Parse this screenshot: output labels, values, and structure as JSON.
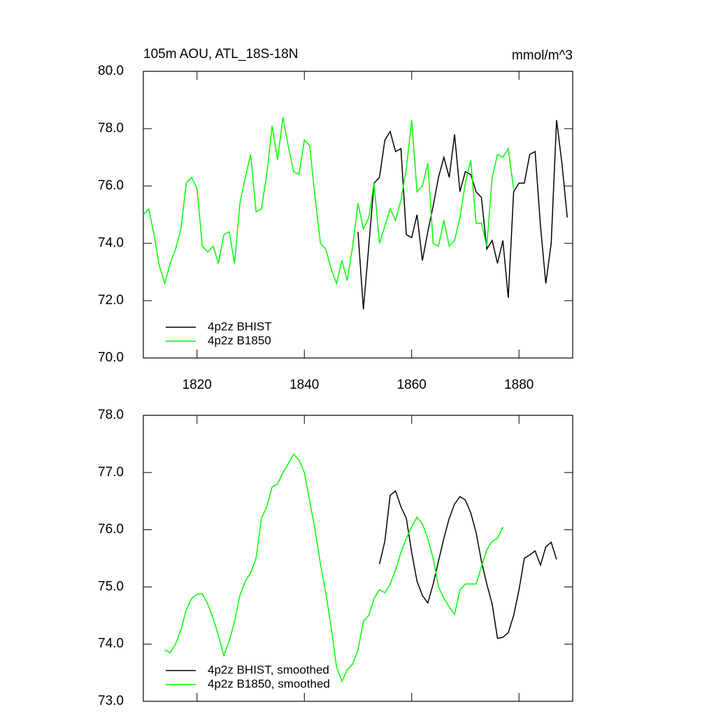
{
  "chart_data": [
    {
      "type": "line",
      "title": "105m AOU, ATL_18S-18N",
      "units_label": "mmol/m^3",
      "xlim": [
        1810,
        1890
      ],
      "xticks": [
        1820,
        1840,
        1860,
        1880
      ],
      "show_xtick_labels": true,
      "ylim": [
        70,
        80
      ],
      "yticks": [
        {
          "value": 70,
          "label": "70.0"
        },
        {
          "value": 72,
          "label": "72.0"
        },
        {
          "value": 74,
          "label": "74.0"
        },
        {
          "value": 76,
          "label": "76.0"
        },
        {
          "value": 78,
          "label": "78.0"
        },
        {
          "value": 80,
          "label": "80.0"
        }
      ],
      "legend": "lower left",
      "series": [
        {
          "name": "4p2z BHIST",
          "color": "#000000",
          "x": [
            1850,
            1851,
            1852,
            1853,
            1854,
            1855,
            1856,
            1857,
            1858,
            1859,
            1860,
            1861,
            1862,
            1863,
            1864,
            1865,
            1866,
            1867,
            1868,
            1869,
            1870,
            1871,
            1872,
            1873,
            1874,
            1875,
            1876,
            1877,
            1878,
            1879,
            1880,
            1881,
            1882,
            1883,
            1884,
            1885,
            1886,
            1887,
            1888,
            1889
          ],
          "values": [
            74.4,
            71.7,
            73.9,
            76.1,
            76.3,
            77.6,
            77.9,
            77.2,
            77.3,
            74.3,
            74.2,
            75.0,
            73.4,
            74.4,
            75.3,
            76.3,
            77.0,
            76.3,
            77.8,
            75.8,
            76.5,
            76.4,
            75.8,
            75.6,
            73.8,
            74.1,
            73.3,
            74.1,
            72.1,
            75.8,
            76.1,
            76.1,
            77.1,
            77.2,
            74.6,
            72.6,
            74.0,
            78.3,
            76.8,
            74.9
          ]
        },
        {
          "name": "4p2z B1850",
          "color": "#00ff00",
          "x": [
            1810,
            1811,
            1812,
            1813,
            1814,
            1815,
            1816,
            1817,
            1818,
            1819,
            1820,
            1821,
            1822,
            1823,
            1824,
            1825,
            1826,
            1827,
            1828,
            1829,
            1830,
            1831,
            1832,
            1833,
            1834,
            1835,
            1836,
            1837,
            1838,
            1839,
            1840,
            1841,
            1842,
            1843,
            1844,
            1845,
            1846,
            1847,
            1848,
            1849,
            1850,
            1851,
            1852,
            1853,
            1854,
            1855,
            1856,
            1857,
            1858,
            1859,
            1860,
            1861,
            1862,
            1863,
            1864,
            1865,
            1866,
            1867,
            1868,
            1869,
            1870,
            1871,
            1872,
            1873,
            1874,
            1875,
            1876,
            1877,
            1878,
            1879
          ],
          "values": [
            75.0,
            75.2,
            74.3,
            73.2,
            72.6,
            73.3,
            73.8,
            74.5,
            76.1,
            76.3,
            75.9,
            73.9,
            73.7,
            73.9,
            73.3,
            74.3,
            74.4,
            73.3,
            75.4,
            76.3,
            77.1,
            75.1,
            75.2,
            76.4,
            78.1,
            76.9,
            78.4,
            77.4,
            76.5,
            76.4,
            77.6,
            77.4,
            75.6,
            74.0,
            73.8,
            73.1,
            72.6,
            73.4,
            72.7,
            73.9,
            75.4,
            74.5,
            74.9,
            76.1,
            74.0,
            74.6,
            75.2,
            74.8,
            75.5,
            76.6,
            78.3,
            75.8,
            76.0,
            76.8,
            74.0,
            73.9,
            74.8,
            73.9,
            74.1,
            74.9,
            76.1,
            76.9,
            74.7,
            74.7,
            73.9,
            76.3,
            77.1,
            77.0,
            77.3,
            75.9
          ]
        }
      ]
    },
    {
      "type": "line",
      "xlim": [
        1810,
        1890
      ],
      "xticks": [
        1820,
        1840,
        1860,
        1880
      ],
      "show_xtick_labels": false,
      "ylim": [
        73,
        78
      ],
      "yticks": [
        {
          "value": 73,
          "label": "73.0"
        },
        {
          "value": 74,
          "label": "74.0"
        },
        {
          "value": 75,
          "label": "75.0"
        },
        {
          "value": 76,
          "label": "76.0"
        },
        {
          "value": 77,
          "label": "77.0"
        },
        {
          "value": 78,
          "label": "78.0"
        }
      ],
      "legend": "lower left",
      "series": [
        {
          "name": "4p2z BHIST, smoothed",
          "color": "#000000",
          "x": [
            1854,
            1855,
            1856,
            1857,
            1858,
            1859,
            1860,
            1861,
            1862,
            1863,
            1864,
            1865,
            1866,
            1867,
            1868,
            1869,
            1870,
            1871,
            1872,
            1873,
            1874,
            1875,
            1876,
            1877,
            1878,
            1879,
            1880,
            1881,
            1882,
            1883,
            1884,
            1885,
            1886,
            1887
          ],
          "values": [
            75.4,
            75.8,
            76.6,
            76.68,
            76.4,
            76.2,
            75.6,
            75.1,
            74.85,
            74.72,
            75.05,
            75.45,
            75.85,
            76.2,
            76.45,
            76.58,
            76.52,
            76.3,
            75.95,
            75.45,
            75.05,
            74.7,
            74.1,
            74.12,
            74.2,
            74.5,
            74.95,
            75.5,
            75.56,
            75.63,
            75.38,
            75.7,
            75.78,
            75.48
          ]
        },
        {
          "name": "4p2z B1850, smoothed",
          "color": "#00ff00",
          "x": [
            1814,
            1815,
            1816,
            1817,
            1818,
            1819,
            1820,
            1821,
            1822,
            1823,
            1824,
            1825,
            1826,
            1827,
            1828,
            1829,
            1830,
            1831,
            1832,
            1833,
            1834,
            1835,
            1836,
            1837,
            1838,
            1839,
            1840,
            1841,
            1842,
            1843,
            1844,
            1845,
            1846,
            1847,
            1848,
            1849,
            1850,
            1851,
            1852,
            1853,
            1854,
            1855,
            1856,
            1857,
            1858,
            1859,
            1860,
            1861,
            1862,
            1863,
            1864,
            1865,
            1866,
            1867,
            1868,
            1869,
            1870,
            1871,
            1872,
            1873,
            1874,
            1875,
            1876,
            1877
          ],
          "values": [
            73.9,
            73.85,
            74.0,
            74.25,
            74.6,
            74.8,
            74.87,
            74.88,
            74.7,
            74.45,
            74.15,
            73.8,
            74.05,
            74.4,
            74.85,
            75.1,
            75.25,
            75.5,
            76.2,
            76.4,
            76.75,
            76.8,
            77.0,
            77.15,
            77.32,
            77.22,
            77.0,
            76.5,
            76.0,
            75.4,
            74.9,
            74.3,
            73.6,
            73.35,
            73.55,
            73.65,
            73.9,
            74.4,
            74.5,
            74.8,
            74.95,
            74.9,
            75.05,
            75.3,
            75.6,
            75.85,
            76.05,
            76.22,
            76.1,
            75.85,
            75.5,
            75.0,
            74.8,
            74.65,
            74.52,
            74.95,
            75.05,
            75.05,
            75.05,
            75.35,
            75.65,
            75.8,
            75.85,
            76.05
          ]
        }
      ]
    }
  ]
}
